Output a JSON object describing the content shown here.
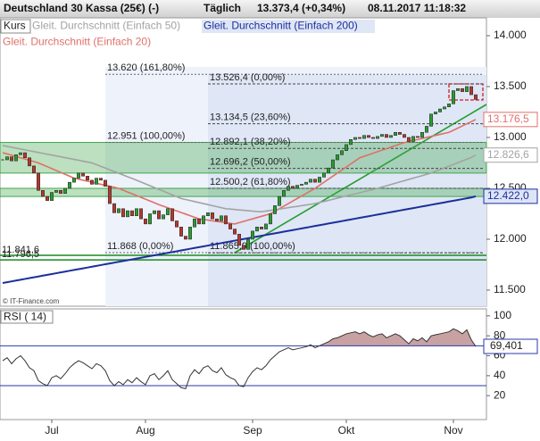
{
  "header": {
    "title": "Deutschland 30 Kassa (25€) (-)",
    "interval": "Täglich",
    "quote": "13.373,4 (+0,34%)",
    "timestamp": "08.11.2017 11:18:32"
  },
  "chart_data": [
    {
      "type": "candlestick",
      "categories": [
        null,
        null,
        null,
        null,
        null,
        null,
        null,
        null,
        null,
        null,
        null,
        "Jul",
        null,
        null,
        null,
        null,
        null,
        null,
        null,
        null,
        null,
        null,
        null,
        null,
        null,
        null,
        null,
        null,
        null,
        null,
        null,
        null,
        "Aug",
        null,
        null,
        null,
        null,
        null,
        null,
        null,
        null,
        null,
        null,
        null,
        null,
        null,
        null,
        null,
        null,
        null,
        null,
        null,
        null,
        null,
        null,
        null,
        "Sep",
        null,
        null,
        null,
        null,
        null,
        null,
        null,
        null,
        null,
        null,
        null,
        null,
        null,
        null,
        null,
        null,
        null,
        null,
        null,
        null,
        "Okt",
        null,
        null,
        null,
        null,
        null,
        null,
        null,
        null,
        null,
        null,
        null,
        null,
        null,
        null,
        null,
        null,
        null,
        null,
        null,
        null,
        null,
        null,
        null,
        "Nov",
        null,
        null,
        null,
        null,
        null
      ],
      "series": [
        {
          "name": "Kurs",
          "color": "#2e9a34",
          "down_color": "#b0392e",
          "values": [
            12780,
            12810,
            12770,
            12830,
            12850,
            12800,
            12720,
            12650,
            12480,
            12420,
            12380,
            12460,
            12480,
            12450,
            12500,
            12560,
            12600,
            12650,
            12620,
            12580,
            12540,
            12600,
            12580,
            12520,
            12350,
            12260,
            12300,
            12220,
            12280,
            12230,
            12300,
            12200,
            12150,
            12250,
            12280,
            12200,
            12240,
            12300,
            12180,
            12120,
            12030,
            12000,
            12120,
            12200,
            12150,
            12230,
            12260,
            12200,
            12180,
            12230,
            12150,
            12100,
            12050,
            11940,
            11900,
            12000,
            12080,
            12120,
            12100,
            12150,
            12250,
            12330,
            12420,
            12480,
            12520,
            12500,
            12530,
            12540,
            12560,
            12590,
            12560,
            12610,
            12650,
            12700,
            12780,
            12830,
            12870,
            12930,
            12980,
            13000,
            12990,
            13020,
            13000,
            12990,
            13010,
            13030,
            13000,
            13020,
            13050,
            13030,
            13000,
            12960,
            13010,
            13000,
            13050,
            13110,
            13230,
            13250,
            13280,
            13300,
            13330,
            13460,
            13480,
            13450,
            13500,
            13420,
            13373.4
          ]
        },
        {
          "name": "Gleit. Durchschnitt (Einfach 50)",
          "color": "#a3a3a3",
          "last_label": "12.826,6",
          "values": [
            12920,
            12912,
            12903,
            12895,
            12886,
            12878,
            12869,
            12861,
            12852,
            12844,
            12835,
            12827,
            12818,
            12810,
            12801,
            12793,
            12784,
            12776,
            12767,
            12759,
            12750,
            12733,
            12716,
            12699,
            12682,
            12665,
            12648,
            12631,
            12614,
            12597,
            12580,
            12562,
            12544,
            12526,
            12508,
            12490,
            12472,
            12454,
            12436,
            12418,
            12400,
            12390,
            12380,
            12370,
            12360,
            12350,
            12340,
            12330,
            12320,
            12310,
            12300,
            12296,
            12292,
            12288,
            12284,
            12280,
            12276,
            12272,
            12270,
            12277,
            12283,
            12290,
            12297,
            12303,
            12310,
            12317,
            12323,
            12330,
            12337,
            12343,
            12350,
            12361,
            12371,
            12382,
            12393,
            12404,
            12414,
            12425,
            12436,
            12446,
            12457,
            12468,
            12479,
            12489,
            12500,
            12513,
            12525,
            12538,
            12550,
            12563,
            12575,
            12588,
            12600,
            12613,
            12625,
            12638,
            12650,
            12667,
            12684,
            12701,
            12718,
            12735,
            12752,
            12769,
            12786,
            12803,
            12826.6
          ]
        },
        {
          "name": "Gleit. Durchschnitt (Einfach 200)",
          "color": "#1c2f9c",
          "last_label": "12.422,0",
          "values": [
            11570,
            11578,
            11586,
            11594,
            11602,
            11610,
            11618,
            11626,
            11634,
            11642,
            11650,
            11658,
            11666,
            11674,
            11682,
            11690,
            11698,
            11706,
            11714,
            11722,
            11730,
            11738,
            11746,
            11754,
            11762,
            11770,
            11778,
            11786,
            11794,
            11802,
            11810,
            11818,
            11826,
            11834,
            11842,
            11850,
            11858,
            11866,
            11874,
            11882,
            11890,
            11898,
            11906,
            11914,
            11922,
            11930,
            11938,
            11946,
            11954,
            11962,
            11970,
            11978,
            11986,
            11994,
            12002,
            12010,
            12018,
            12026,
            12034,
            12042,
            12050,
            12058,
            12066,
            12074,
            12082,
            12090,
            12098,
            12106,
            12114,
            12122,
            12130,
            12138,
            12146,
            12154,
            12162,
            12170,
            12178,
            12186,
            12194,
            12202,
            12210,
            12218,
            12226,
            12234,
            12242,
            12250,
            12258,
            12266,
            12274,
            12282,
            12290,
            12298,
            12306,
            12314,
            12322,
            12330,
            12338,
            12346,
            12354,
            12362,
            12370,
            12378,
            12386,
            12394,
            12402,
            12410,
            12422
          ]
        },
        {
          "name": "Gleit. Durchschnitt (Einfach 20)",
          "color": "#e0706a",
          "last_label": "13.176,5",
          "values": [
            12850,
            12838,
            12825,
            12813,
            12800,
            12788,
            12775,
            12763,
            12750,
            12731,
            12713,
            12694,
            12675,
            12656,
            12638,
            12619,
            12600,
            12590,
            12580,
            12570,
            12560,
            12550,
            12540,
            12530,
            12520,
            12510,
            12500,
            12482,
            12464,
            12447,
            12429,
            12411,
            12393,
            12376,
            12358,
            12340,
            12324,
            12309,
            12293,
            12278,
            12262,
            12247,
            12231,
            12216,
            12200,
            12194,
            12188,
            12181,
            12175,
            12169,
            12163,
            12156,
            12150,
            12163,
            12175,
            12188,
            12200,
            12213,
            12225,
            12238,
            12250,
            12275,
            12300,
            12325,
            12350,
            12375,
            12400,
            12425,
            12450,
            12475,
            12500,
            12530,
            12560,
            12590,
            12620,
            12650,
            12680,
            12710,
            12740,
            12770,
            12800,
            12815,
            12830,
            12845,
            12860,
            12875,
            12890,
            12905,
            12920,
            12935,
            12950,
            12960,
            12970,
            12980,
            12990,
            13000,
            13010,
            13020,
            13030,
            13040,
            13050,
            13071,
            13092,
            13113,
            13134,
            13155,
            13176.5
          ]
        }
      ],
      "ylim": [
        11342,
        14175
      ],
      "yticks": [
        {
          "value": 11500,
          "label": "11.500"
        },
        {
          "value": 12000,
          "label": "12.000"
        },
        {
          "value": 12500,
          "label": "12.500"
        },
        {
          "value": 13000,
          "label": "13.000"
        },
        {
          "value": 13500,
          "label": "13.500"
        },
        {
          "value": 14000,
          "label": "14.000"
        }
      ],
      "fib_levels_a": [
        {
          "value": 13620,
          "label": "13.620 (161,80%)"
        },
        {
          "value": 12951,
          "label": "12.951 (100,00%)"
        },
        {
          "value": 11868,
          "label": "11.868 (0,00%)"
        }
      ],
      "fib_levels_b": [
        {
          "value": 13526.4,
          "label": "13.526,4 (0,00%)"
        },
        {
          "value": 13134.5,
          "label": "13.134,5 (23,60%)"
        },
        {
          "value": 12892.1,
          "label": "12.892,1 (38,20%)"
        },
        {
          "value": 12696.2,
          "label": "12.696,2 (50,00%)"
        },
        {
          "value": 12500.2,
          "label": "12.500,2 (61,80%)"
        },
        {
          "value": 11865.9,
          "label": "11.865,9 (100,00%)"
        }
      ],
      "support_levels": [
        {
          "value": 11841.6,
          "label": "11.841,6"
        },
        {
          "value": 11796.5,
          "label": "11.796,5"
        }
      ],
      "zones": [
        {
          "from": 12650,
          "to": 12951
        },
        {
          "from": 12420,
          "to": 12500
        }
      ],
      "zone_color": "#3fa64a",
      "annotation": "© IT-Finance.com"
    },
    {
      "type": "line",
      "title": "RSI ( 14)",
      "color": "#333333",
      "fill": "#c8a2a2",
      "band_color": "#2a3aa8",
      "last_label": "69,401",
      "values": [
        55,
        58,
        52,
        57,
        60,
        55,
        48,
        45,
        35,
        32,
        30,
        38,
        40,
        37,
        42,
        48,
        52,
        55,
        53,
        50,
        47,
        52,
        50,
        45,
        35,
        30,
        34,
        31,
        36,
        33,
        38,
        34,
        31,
        40,
        42,
        36,
        40,
        45,
        36,
        32,
        28,
        27,
        40,
        46,
        42,
        48,
        50,
        45,
        43,
        48,
        41,
        38,
        36,
        30,
        29,
        38,
        44,
        48,
        46,
        50,
        56,
        60,
        64,
        66,
        68,
        66,
        67,
        68,
        69,
        71,
        68,
        70,
        72,
        74,
        77,
        78,
        80,
        82,
        83,
        84,
        82,
        84,
        81,
        79,
        81,
        82,
        78,
        80,
        82,
        80,
        76,
        72,
        77,
        75,
        78,
        74,
        80,
        81,
        82,
        83,
        84,
        87,
        85,
        82,
        86,
        76,
        69.401
      ],
      "bands": [
        30,
        70
      ],
      "ylim": [
        -4,
        107
      ],
      "yticks": [
        20,
        40,
        60,
        80,
        100
      ]
    }
  ]
}
